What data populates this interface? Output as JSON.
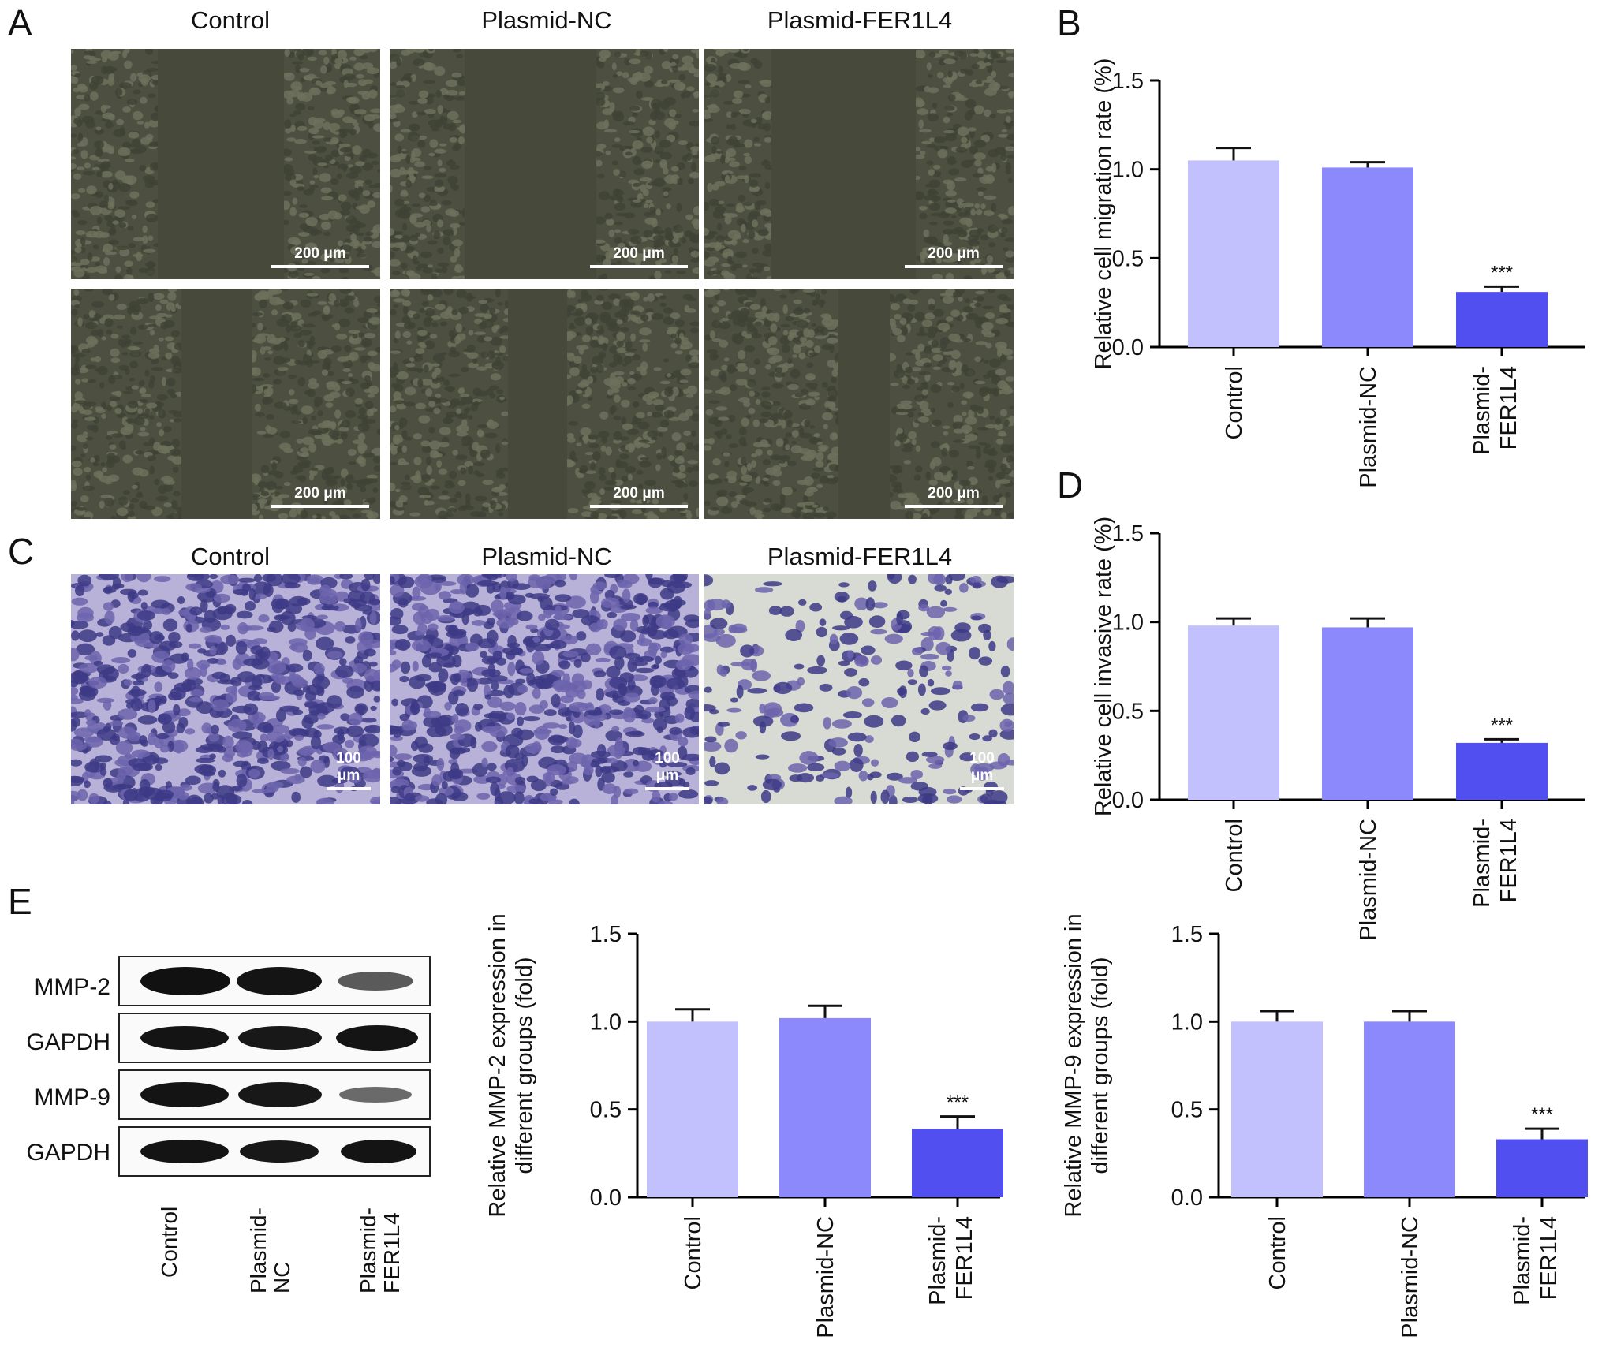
{
  "panel_labels": {
    "a": "A",
    "b": "B",
    "c": "C",
    "d": "D",
    "e": "E"
  },
  "groups": [
    "Control",
    "Plasmid-NC",
    "Plasmid-FER1L4"
  ],
  "panel_a": {
    "scale": "200 μm"
  },
  "panel_c": {
    "scale": "100 μm"
  },
  "blot": {
    "rows": [
      "MMP-2",
      "GAPDH",
      "MMP-9",
      "GAPDH"
    ],
    "xlabels": [
      "Control",
      "Plasmid-\nNC",
      "Plasmid-\nFER1L4"
    ]
  },
  "colors": {
    "control": "#c3c0fe",
    "nc": "#8b89fb",
    "fer": "#514ff0"
  },
  "chart_data": [
    {
      "id": "B",
      "type": "bar",
      "ylabel": "Relative cell migration rate (%)",
      "categories": [
        "Control",
        "Plasmid-NC",
        "Plasmid-\nFER1L4"
      ],
      "values": [
        1.05,
        1.01,
        0.31
      ],
      "errors": [
        0.07,
        0.03,
        0.03
      ],
      "sig": [
        "",
        "",
        "***"
      ],
      "ylim": [
        0,
        1.5
      ],
      "yticks": [
        "0.0",
        "0.5",
        "1.0",
        "1.5"
      ]
    },
    {
      "id": "D",
      "type": "bar",
      "ylabel": "Relative cell invasive rate (%)",
      "categories": [
        "Control",
        "Plasmid-NC",
        "Plasmid-\nFER1L4"
      ],
      "values": [
        0.98,
        0.97,
        0.32
      ],
      "errors": [
        0.04,
        0.05,
        0.02
      ],
      "sig": [
        "",
        "",
        "***"
      ],
      "ylim": [
        0,
        1.5
      ],
      "yticks": [
        "0.0",
        "0.5",
        "1.0",
        "1.5"
      ]
    },
    {
      "id": "E1",
      "type": "bar",
      "ylabel": "Relative MMP-2 expression in\ndifferent groups (fold)",
      "categories": [
        "Control",
        "Plasmid-NC",
        "Plasmid-\nFER1L4"
      ],
      "values": [
        1.0,
        1.02,
        0.39
      ],
      "errors": [
        0.07,
        0.07,
        0.07
      ],
      "sig": [
        "",
        "",
        "***"
      ],
      "ylim": [
        0,
        1.5
      ],
      "yticks": [
        "0.0",
        "0.5",
        "1.0",
        "1.5"
      ]
    },
    {
      "id": "E2",
      "type": "bar",
      "ylabel": "Relative MMP-9 expression in\ndifferent groups (fold)",
      "categories": [
        "Control",
        "Plasmid-NC",
        "Plasmid-\nFER1L4"
      ],
      "values": [
        1.0,
        1.0,
        0.33
      ],
      "errors": [
        0.06,
        0.06,
        0.06
      ],
      "sig": [
        "",
        "",
        "***"
      ],
      "ylim": [
        0,
        1.5
      ],
      "yticks": [
        "0.0",
        "0.5",
        "1.0",
        "1.5"
      ]
    }
  ]
}
